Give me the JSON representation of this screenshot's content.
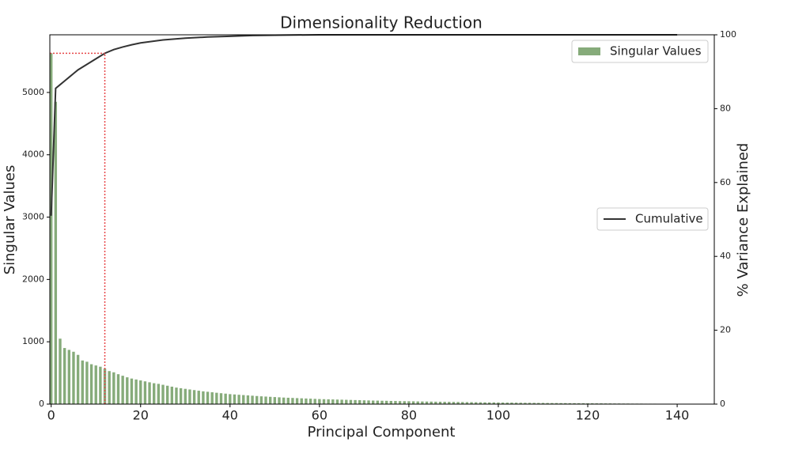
{
  "chart_data": {
    "type": "bar",
    "title": "Dimensionality Reduction",
    "xlabel": "Principal Component",
    "ylabel": "Singular Values",
    "y2label": "% Variance Explained",
    "x": [
      0,
      1,
      2,
      3,
      4,
      5,
      6,
      7,
      8,
      9,
      10,
      11,
      12,
      13,
      14,
      15,
      16,
      17,
      18,
      19,
      20,
      21,
      22,
      23,
      24,
      25,
      26,
      27,
      28,
      29,
      30,
      31,
      32,
      33,
      34,
      35,
      36,
      37,
      38,
      39,
      40,
      41,
      42,
      43,
      44,
      45,
      46,
      47,
      48,
      49,
      50,
      51,
      52,
      53,
      54,
      55,
      56,
      57,
      58,
      59,
      60,
      61,
      62,
      63,
      64,
      65,
      66,
      67,
      68,
      69,
      70,
      71,
      72,
      73,
      74,
      75,
      76,
      77,
      78,
      79,
      80,
      81,
      82,
      83,
      84,
      85,
      86,
      87,
      88,
      89,
      90,
      91,
      92,
      93,
      94,
      95,
      96,
      97,
      98,
      99,
      100,
      101,
      102,
      103,
      104,
      105,
      106,
      107,
      108,
      109,
      110,
      111,
      112,
      113,
      114,
      115,
      116,
      117,
      118,
      119,
      120,
      121,
      122,
      123,
      124,
      125,
      126,
      127,
      128,
      129,
      130,
      131,
      132,
      133,
      134,
      135,
      136,
      137,
      138,
      139,
      140
    ],
    "series": [
      {
        "name": "Singular Values",
        "color": "#86ab7a",
        "legend": "upper right",
        "values": [
          5630,
          4850,
          1050,
          900,
          870,
          840,
          790,
          700,
          680,
          640,
          620,
          600,
          570,
          530,
          510,
          480,
          455,
          430,
          410,
          395,
          380,
          365,
          350,
          335,
          325,
          310,
          295,
          280,
          265,
          255,
          245,
          235,
          225,
          215,
          205,
          198,
          190,
          182,
          175,
          168,
          160,
          155,
          150,
          145,
          140,
          135,
          130,
          125,
          121,
          117,
          113,
          109,
          105,
          102,
          99,
          96,
          93,
          90,
          87,
          84,
          81,
          79,
          77,
          75,
          73,
          71,
          69,
          67,
          65,
          63,
          61,
          59,
          57,
          56,
          54,
          53,
          51,
          50,
          48,
          47,
          46,
          45,
          43,
          42,
          41,
          40,
          39,
          38,
          37,
          36,
          35,
          34,
          33,
          32,
          31,
          30,
          29,
          28,
          27,
          27,
          26,
          25,
          24,
          24,
          23,
          22,
          21,
          21,
          20,
          19,
          19,
          18,
          17,
          17,
          16,
          16,
          15,
          15,
          14,
          14,
          13,
          13,
          12,
          12,
          11,
          11,
          10,
          10,
          9,
          9,
          8,
          8,
          8,
          7,
          7,
          7,
          6,
          6,
          6,
          5,
          5
        ]
      },
      {
        "name": "Cumulative",
        "type": "line",
        "axis": "y2",
        "color": "#333333",
        "legend": "center right",
        "x": [
          0,
          1,
          2,
          3,
          4,
          5,
          6,
          8,
          10,
          12,
          14,
          16,
          18,
          20,
          25,
          30,
          35,
          40,
          45,
          50,
          60,
          80,
          100,
          120,
          140
        ],
        "values": [
          51,
          85.5,
          86.5,
          87.5,
          88.5,
          89.5,
          90.5,
          92,
          93.5,
          95,
          96,
          96.7,
          97.3,
          97.8,
          98.6,
          99.1,
          99.4,
          99.6,
          99.8,
          99.9,
          100,
          100,
          100,
          100,
          100
        ]
      }
    ],
    "reference": {
      "x": 12,
      "y2": 95,
      "color": "#e8474a"
    },
    "xlim": [
      -0.3,
      148.3
    ],
    "xticks": [
      0,
      20,
      40,
      60,
      80,
      100,
      120,
      140
    ],
    "ylim": [
      0,
      5925
    ],
    "yticks": [
      0,
      1000,
      2000,
      3000,
      4000,
      5000
    ],
    "y2lim": [
      0,
      100
    ],
    "y2ticks": [
      0,
      20,
      40,
      60,
      80,
      100
    ]
  }
}
